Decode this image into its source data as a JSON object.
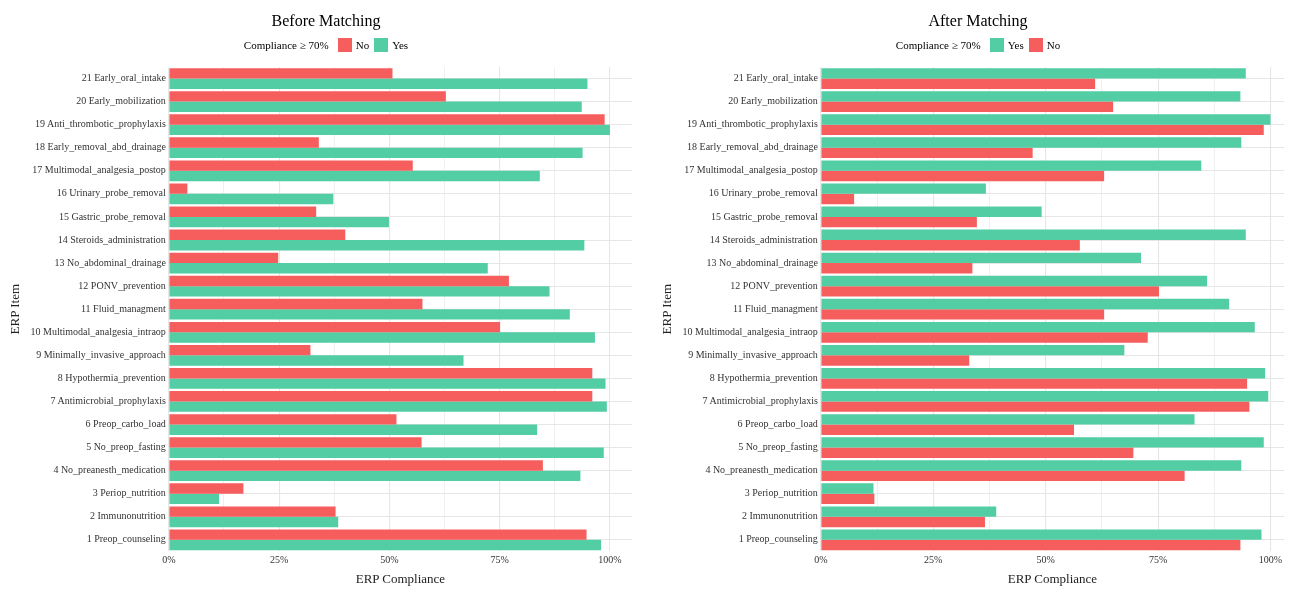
{
  "chart_data": [
    {
      "type": "bar",
      "orientation": "horizontal",
      "title": "Before Matching",
      "xlabel": "ERP Compliance",
      "ylabel": "ERP Item",
      "legend_title": "Compliance ≥ 70%",
      "legend": "top",
      "grid": true,
      "categories": [
        "21 Early_oral_intake",
        "20 Early_mobilization",
        "19 Anti_thrombotic_prophylaxis",
        "18 Early_removal_abd_drainage",
        "17 Multimodal_analgesia_postop",
        "16 Urinary_probe_removal",
        "15 Gastric_probe_removal",
        "14 Steroids_administration",
        "13 No_abdominal_drainage",
        "12 PONV_prevention",
        "11 Fluid_managment",
        "10 Multimodal_analgesia_intraop",
        "9 Minimally_invasive_approach",
        "8 Hypothermia_prevention",
        "7 Antimicrobial_prophylaxis",
        "6 Preop_carbo_load",
        "5 No_preop_fasting",
        "4 No_preanesth_medication",
        "3 Periop_nutrition",
        "2 Immunonutrition",
        "1 Preop_counseling"
      ],
      "xlim": [
        0,
        105
      ],
      "xticks": [
        {
          "value": 0,
          "label": "0%"
        },
        {
          "value": 12.5,
          "label": null
        },
        {
          "value": 25,
          "label": "25%"
        },
        {
          "value": 37.5,
          "label": null
        },
        {
          "value": 50,
          "label": "50%"
        },
        {
          "value": 62.5,
          "label": null
        },
        {
          "value": 75,
          "label": "75%"
        },
        {
          "value": 87.5,
          "label": null
        },
        {
          "value": 100,
          "label": "100%"
        }
      ],
      "series": [
        {
          "name": "No",
          "color": "#f65e5e",
          "values": [
            50.7,
            62.8,
            98.8,
            34.0,
            55.3,
            4.2,
            33.4,
            40.0,
            24.8,
            77.1,
            57.5,
            75.1,
            32.1,
            96.0,
            96.0,
            51.6,
            57.3,
            84.8,
            16.9,
            37.8,
            94.7
          ]
        },
        {
          "name": "Yes",
          "color": "#53cda4",
          "values": [
            94.9,
            93.6,
            100,
            93.8,
            84.1,
            37.3,
            49.9,
            94.2,
            72.3,
            86.3,
            90.9,
            96.6,
            66.8,
            99.0,
            99.3,
            83.5,
            98.6,
            93.3,
            11.4,
            38.4,
            98.0
          ]
        }
      ]
    },
    {
      "type": "bar",
      "orientation": "horizontal",
      "title": "After Matching",
      "xlabel": "ERP Compliance",
      "ylabel": "ERP Item",
      "legend_title": "Compliance ≥ 70%",
      "legend": "top",
      "grid": true,
      "categories": [
        "21 Early_oral_intake",
        "20 Early_mobilization",
        "19 Anti_thrombotic_prophylaxis",
        "18 Early_removal_abd_drainage",
        "17 Multimodal_analgesia_postop",
        "16 Urinary_probe_removal",
        "15 Gastric_probe_removal",
        "14 Steroids_administration",
        "13 No_abdominal_drainage",
        "12 PONV_prevention",
        "11 Fluid_managment",
        "10 Multimodal_analgesia_intraop",
        "9 Minimally_invasive_approach",
        "8 Hypothermia_prevention",
        "7 Antimicrobial_prophylaxis",
        "6 Preop_carbo_load",
        "5 No_preop_fasting",
        "4 No_preanesth_medication",
        "3 Periop_nutrition",
        "2 Immunonutrition",
        "1 Preop_counseling"
      ],
      "xlim": [
        0,
        103
      ],
      "xticks": [
        {
          "value": 0,
          "label": "0%"
        },
        {
          "value": 12.5,
          "label": null
        },
        {
          "value": 25,
          "label": "25%"
        },
        {
          "value": 37.5,
          "label": null
        },
        {
          "value": 50,
          "label": "50%"
        },
        {
          "value": 62.5,
          "label": null
        },
        {
          "value": 75,
          "label": "75%"
        },
        {
          "value": 87.5,
          "label": null
        },
        {
          "value": 100,
          "label": "100%"
        }
      ],
      "series": [
        {
          "name": "Yes",
          "color": "#53cda4",
          "values": [
            94.5,
            93.3,
            100,
            93.5,
            84.6,
            36.7,
            49.1,
            94.5,
            71.2,
            85.9,
            90.8,
            96.5,
            67.5,
            98.8,
            99.5,
            83.1,
            98.5,
            93.5,
            11.7,
            39.0,
            98.0
          ]
        },
        {
          "name": "No",
          "color": "#f65e5e",
          "values": [
            61.0,
            65.0,
            98.5,
            47.1,
            63.0,
            7.4,
            34.7,
            57.6,
            33.7,
            75.2,
            63.0,
            72.7,
            33.0,
            94.8,
            95.3,
            56.3,
            69.5,
            80.9,
            11.9,
            36.5,
            93.3
          ]
        }
      ]
    }
  ]
}
